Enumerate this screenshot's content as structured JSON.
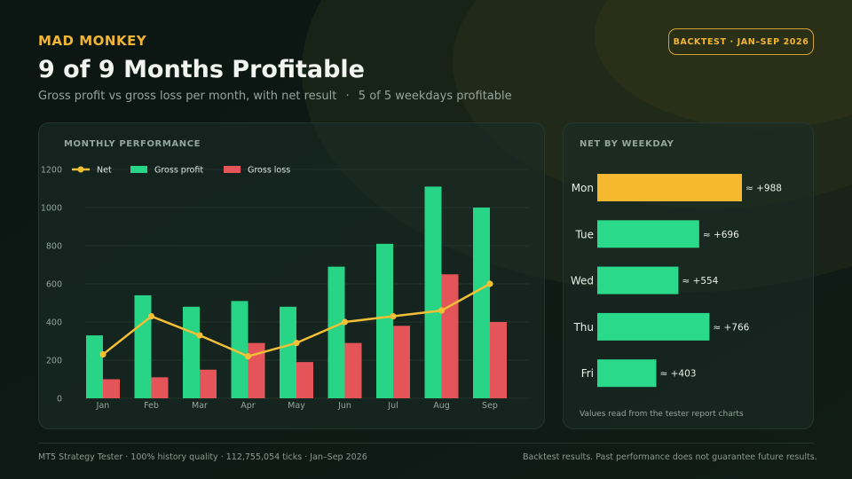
{
  "header": {
    "brand": "MAD MONKEY",
    "title": "9 of 9 Months Profitable",
    "subtitle_main": "Gross profit vs gross loss per month, with net result",
    "subtitle_separator": "·",
    "subtitle_extra": "5 of 5 weekdays profitable",
    "badge": "BACKTEST · JAN–SEP 2026"
  },
  "colors": {
    "background": "#0f1a16",
    "gold": "#f2b632",
    "profit": "#28d485",
    "loss": "#e35559",
    "net": "#f2bf36",
    "muted_text": "#93a69d"
  },
  "monthly_panel": {
    "title": "MONTHLY PERFORMANCE"
  },
  "weekday_panel": {
    "title": "NET BY WEEKDAY",
    "note": "Values read from the tester report charts"
  },
  "chart_data": [
    {
      "type": "bar",
      "title": "MONTHLY PERFORMANCE",
      "categories": [
        "Jan",
        "Feb",
        "Mar",
        "Apr",
        "May",
        "Jun",
        "Jul",
        "Aug",
        "Sep"
      ],
      "series": [
        {
          "name": "Net",
          "kind": "line",
          "color": "#f2bf36",
          "values": [
            230,
            430,
            330,
            220,
            290,
            400,
            430,
            460,
            600
          ]
        },
        {
          "name": "Gross profit",
          "kind": "bar",
          "color": "#28d485",
          "values": [
            330,
            540,
            480,
            510,
            480,
            690,
            810,
            1110,
            1000
          ]
        },
        {
          "name": "Gross loss",
          "kind": "bar",
          "color": "#e35559",
          "values": [
            100,
            110,
            150,
            290,
            190,
            290,
            380,
            650,
            400
          ]
        }
      ],
      "ylim": [
        0,
        1200
      ],
      "yticks": [
        0,
        200,
        400,
        600,
        800,
        1000,
        1200
      ],
      "grid": true,
      "legend": "top-left"
    },
    {
      "type": "bar",
      "orientation": "horizontal",
      "title": "NET BY WEEKDAY",
      "categories": [
        "Mon",
        "Tue",
        "Wed",
        "Thu",
        "Fri"
      ],
      "values": [
        988,
        696,
        554,
        766,
        403
      ],
      "labels": [
        "≈ +988",
        "≈ +696",
        "≈ +554",
        "≈ +766",
        "≈ +403"
      ],
      "colors": [
        "#f5b82e",
        "#2bd98a",
        "#2bd98a",
        "#2bd98a",
        "#2bd98a"
      ],
      "xlim": [
        0,
        988
      ]
    }
  ],
  "footer": {
    "left": "MT5 Strategy Tester · 100% history quality · 112,755,054 ticks · Jan–Sep 2026",
    "right": "Backtest results. Past performance does not guarantee future results."
  }
}
